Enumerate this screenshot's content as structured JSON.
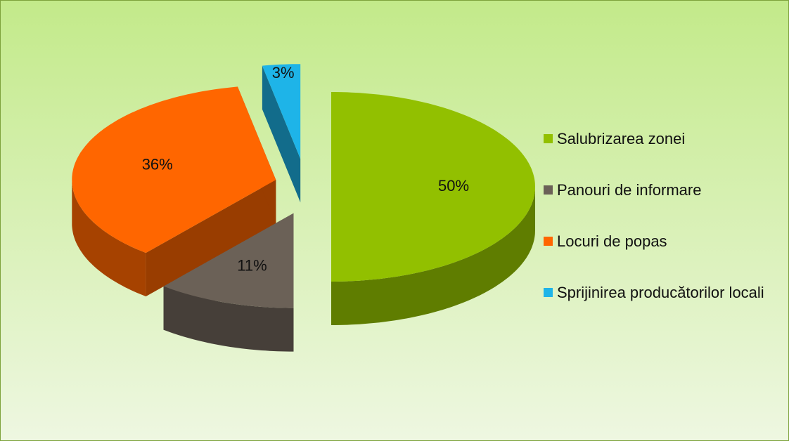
{
  "chart_data": {
    "type": "pie",
    "categories": [
      "Salubrizarea zonei",
      "Panouri de informare",
      "Locuri de popas",
      "Sprijinirea producătorilor locali"
    ],
    "values": [
      50,
      11,
      36,
      3
    ],
    "value_labels": [
      "50%",
      "11%",
      "36%",
      "3%"
    ],
    "colors": [
      "#92c000",
      "#6b6157",
      "#ff6600",
      "#1eb4e8"
    ],
    "legend": "right"
  }
}
